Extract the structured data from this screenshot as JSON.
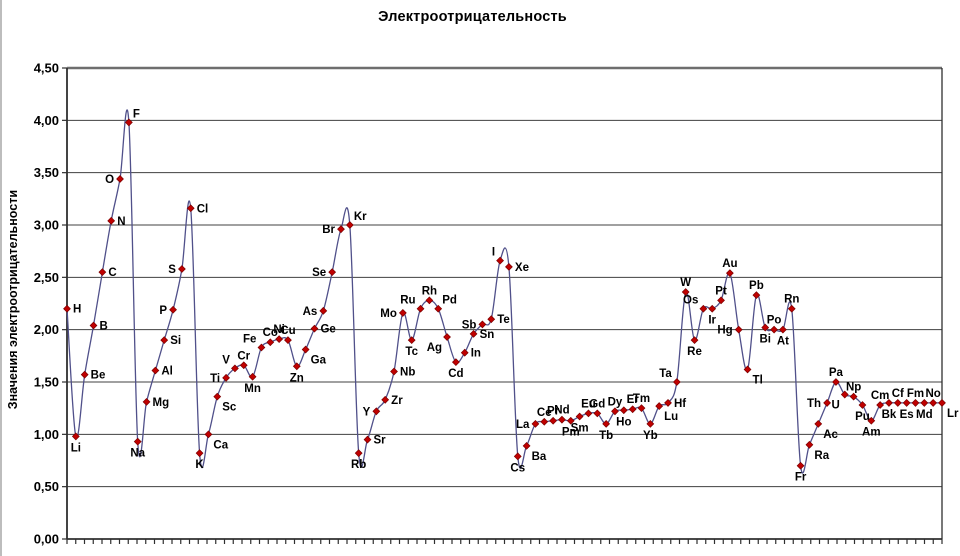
{
  "chart_data": {
    "type": "line",
    "smoothed": true,
    "title": "Электроотрицательность",
    "ylabel": "Значения электроотрицательности",
    "xlabel": "",
    "ylim": [
      0,
      4.5
    ],
    "ytick_step": 0.5,
    "ytick_labels": [
      "0,00",
      "0,50",
      "1,00",
      "1,50",
      "2,00",
      "2,50",
      "3,00",
      "3,50",
      "4,00",
      "4,50"
    ],
    "grid": true,
    "legend": "none",
    "line_color": "#50508a",
    "marker_color": "#c00000",
    "marker_edge_color": "#7a0000",
    "marker_shape": "diamond",
    "gridline_color": "#404040",
    "axis_color": "#2f2f2f",
    "label_color": "#000000",
    "points": [
      {
        "symbol": "H",
        "value": 2.2,
        "label_pos": "right"
      },
      {
        "symbol": "Li",
        "value": 0.98,
        "label_pos": "below"
      },
      {
        "symbol": "Be",
        "value": 1.57,
        "label_pos": "right"
      },
      {
        "symbol": "B",
        "value": 2.04,
        "label_pos": "right"
      },
      {
        "symbol": "C",
        "value": 2.55,
        "label_pos": "right"
      },
      {
        "symbol": "N",
        "value": 3.04,
        "label_pos": "right"
      },
      {
        "symbol": "O",
        "value": 3.44,
        "label_pos": "left"
      },
      {
        "symbol": "F",
        "value": 3.98,
        "label_pos": "above-right"
      },
      {
        "symbol": "Na",
        "value": 0.93,
        "label_pos": "below"
      },
      {
        "symbol": "Mg",
        "value": 1.31,
        "label_pos": "right"
      },
      {
        "symbol": "Al",
        "value": 1.61,
        "label_pos": "right"
      },
      {
        "symbol": "Si",
        "value": 1.9,
        "label_pos": "right"
      },
      {
        "symbol": "P",
        "value": 2.19,
        "label_pos": "left"
      },
      {
        "symbol": "S",
        "value": 2.58,
        "label_pos": "left"
      },
      {
        "symbol": "Cl",
        "value": 3.16,
        "label_pos": "right"
      },
      {
        "symbol": "K",
        "value": 0.82,
        "label_pos": "below"
      },
      {
        "symbol": "Ca",
        "value": 1.0,
        "label_pos": "below-right"
      },
      {
        "symbol": "Sc",
        "value": 1.36,
        "label_pos": "below-right"
      },
      {
        "symbol": "Ti",
        "value": 1.54,
        "label_pos": "left"
      },
      {
        "symbol": "V",
        "value": 1.63,
        "label_pos": "above-left"
      },
      {
        "symbol": "Cr",
        "value": 1.66,
        "label_pos": "above"
      },
      {
        "symbol": "Mn",
        "value": 1.55,
        "label_pos": "below"
      },
      {
        "symbol": "Fe",
        "value": 1.83,
        "label_pos": "above-left"
      },
      {
        "symbol": "Co",
        "value": 1.88,
        "label_pos": "above"
      },
      {
        "symbol": "Ni",
        "value": 1.91,
        "label_pos": "above"
      },
      {
        "symbol": "Cu",
        "value": 1.9,
        "label_pos": "above"
      },
      {
        "symbol": "Zn",
        "value": 1.65,
        "label_pos": "below"
      },
      {
        "symbol": "Ga",
        "value": 1.81,
        "label_pos": "below-right"
      },
      {
        "symbol": "Ge",
        "value": 2.01,
        "label_pos": "right"
      },
      {
        "symbol": "As",
        "value": 2.18,
        "label_pos": "left"
      },
      {
        "symbol": "Se",
        "value": 2.55,
        "label_pos": "left"
      },
      {
        "symbol": "Br",
        "value": 2.96,
        "label_pos": "left"
      },
      {
        "symbol": "Kr",
        "value": 3.0,
        "label_pos": "above-right"
      },
      {
        "symbol": "Rb",
        "value": 0.82,
        "label_pos": "below"
      },
      {
        "symbol": "Sr",
        "value": 0.95,
        "label_pos": "right"
      },
      {
        "symbol": "Y",
        "value": 1.22,
        "label_pos": "left"
      },
      {
        "symbol": "Zr",
        "value": 1.33,
        "label_pos": "right"
      },
      {
        "symbol": "Nb",
        "value": 1.6,
        "label_pos": "right"
      },
      {
        "symbol": "Mo",
        "value": 2.16,
        "label_pos": "left"
      },
      {
        "symbol": "Tc",
        "value": 1.9,
        "label_pos": "below"
      },
      {
        "symbol": "Ru",
        "value": 2.2,
        "label_pos": "above-left"
      },
      {
        "symbol": "Rh",
        "value": 2.28,
        "label_pos": "above"
      },
      {
        "symbol": "Pd",
        "value": 2.2,
        "label_pos": "above-right"
      },
      {
        "symbol": "Ag",
        "value": 1.93,
        "label_pos": "below-left"
      },
      {
        "symbol": "Cd",
        "value": 1.69,
        "label_pos": "below"
      },
      {
        "symbol": "In",
        "value": 1.78,
        "label_pos": "right"
      },
      {
        "symbol": "Sn",
        "value": 1.96,
        "label_pos": "right"
      },
      {
        "symbol": "Sb",
        "value": 2.05,
        "label_pos": "left"
      },
      {
        "symbol": "Te",
        "value": 2.1,
        "label_pos": "right"
      },
      {
        "symbol": "I",
        "value": 2.66,
        "label_pos": "above-left"
      },
      {
        "symbol": "Xe",
        "value": 2.6,
        "label_pos": "right"
      },
      {
        "symbol": "Cs",
        "value": 0.79,
        "label_pos": "below"
      },
      {
        "symbol": "Ba",
        "value": 0.89,
        "label_pos": "below-right"
      },
      {
        "symbol": "La",
        "value": 1.1,
        "label_pos": "left"
      },
      {
        "symbol": "Ce",
        "value": 1.12,
        "label_pos": "above"
      },
      {
        "symbol": "Pr",
        "value": 1.13,
        "label_pos": "above"
      },
      {
        "symbol": "Nd",
        "value": 1.14,
        "label_pos": "above"
      },
      {
        "symbol": "Pm",
        "value": 1.13,
        "label_pos": "below"
      },
      {
        "symbol": "Sm",
        "value": 1.17,
        "label_pos": "below"
      },
      {
        "symbol": "Eu",
        "value": 1.2,
        "label_pos": "above"
      },
      {
        "symbol": "Gd",
        "value": 1.2,
        "label_pos": "above"
      },
      {
        "symbol": "Tb",
        "value": 1.1,
        "label_pos": "below"
      },
      {
        "symbol": "Dy",
        "value": 1.22,
        "label_pos": "above"
      },
      {
        "symbol": "Ho",
        "value": 1.23,
        "label_pos": "below"
      },
      {
        "symbol": "Er",
        "value": 1.24,
        "label_pos": "above"
      },
      {
        "symbol": "Tm",
        "value": 1.25,
        "label_pos": "above"
      },
      {
        "symbol": "Yb",
        "value": 1.1,
        "label_pos": "below"
      },
      {
        "symbol": "Lu",
        "value": 1.27,
        "label_pos": "below-right"
      },
      {
        "symbol": "Hf",
        "value": 1.3,
        "label_pos": "right"
      },
      {
        "symbol": "Ta",
        "value": 1.5,
        "label_pos": "above-left"
      },
      {
        "symbol": "W",
        "value": 2.36,
        "label_pos": "above"
      },
      {
        "symbol": "Re",
        "value": 1.9,
        "label_pos": "below"
      },
      {
        "symbol": "Os",
        "value": 2.2,
        "label_pos": "above-left"
      },
      {
        "symbol": "Ir",
        "value": 2.2,
        "label_pos": "below"
      },
      {
        "symbol": "Pt",
        "value": 2.28,
        "label_pos": "above"
      },
      {
        "symbol": "Au",
        "value": 2.54,
        "label_pos": "above"
      },
      {
        "symbol": "Hg",
        "value": 2.0,
        "label_pos": "left"
      },
      {
        "symbol": "Tl",
        "value": 1.62,
        "label_pos": "below-right"
      },
      {
        "symbol": "Pb",
        "value": 2.33,
        "label_pos": "above"
      },
      {
        "symbol": "Bi",
        "value": 2.02,
        "label_pos": "below"
      },
      {
        "symbol": "Po",
        "value": 2.0,
        "label_pos": "above"
      },
      {
        "symbol": "At",
        "value": 2.0,
        "label_pos": "below"
      },
      {
        "symbol": "Rn",
        "value": 2.2,
        "label_pos": "above"
      },
      {
        "symbol": "Fr",
        "value": 0.7,
        "label_pos": "below"
      },
      {
        "symbol": "Ra",
        "value": 0.9,
        "label_pos": "below-right"
      },
      {
        "symbol": "Ac",
        "value": 1.1,
        "label_pos": "below-right"
      },
      {
        "symbol": "Th",
        "value": 1.3,
        "label_pos": "left"
      },
      {
        "symbol": "Pa",
        "value": 1.5,
        "label_pos": "above"
      },
      {
        "symbol": "U",
        "value": 1.38,
        "label_pos": "below-left"
      },
      {
        "symbol": "Np",
        "value": 1.36,
        "label_pos": "above"
      },
      {
        "symbol": "Pu",
        "value": 1.28,
        "label_pos": "below"
      },
      {
        "symbol": "Am",
        "value": 1.13,
        "label_pos": "below"
      },
      {
        "symbol": "Cm",
        "value": 1.28,
        "label_pos": "above"
      },
      {
        "symbol": "Bk",
        "value": 1.3,
        "label_pos": "below"
      },
      {
        "symbol": "Cf",
        "value": 1.3,
        "label_pos": "above"
      },
      {
        "symbol": "Es",
        "value": 1.3,
        "label_pos": "below"
      },
      {
        "symbol": "Fm",
        "value": 1.3,
        "label_pos": "above"
      },
      {
        "symbol": "Md",
        "value": 1.3,
        "label_pos": "below"
      },
      {
        "symbol": "No",
        "value": 1.3,
        "label_pos": "above"
      },
      {
        "symbol": "Lr",
        "value": 1.3,
        "label_pos": "below-right"
      }
    ]
  }
}
